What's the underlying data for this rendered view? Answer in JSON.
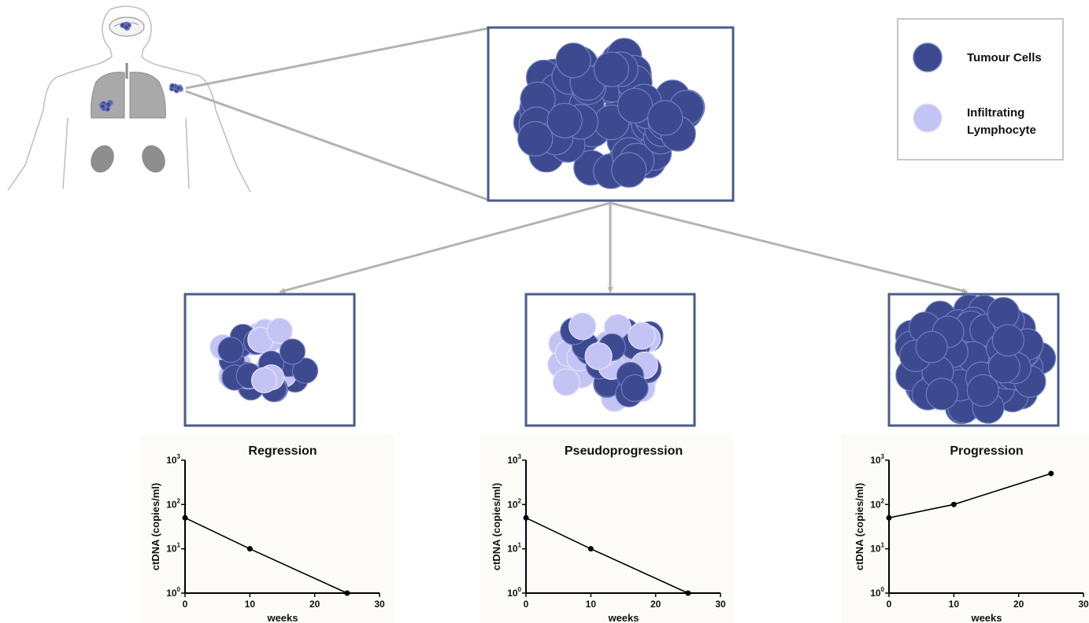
{
  "colors": {
    "tumour": "#3d4a8f",
    "tumour_stroke": "#6f7cc0",
    "lymphocyte": "#c4c4f4",
    "lymphocyte_stroke": "#e2e2fb",
    "frame": "#4a5b8c",
    "arrow": "#b3b3b3",
    "body_outline": "#bdbdbd",
    "organ": "#9a9a9a",
    "chart_bg": "#fcfbf8"
  },
  "legend": {
    "tumour_label": "Tumour Cells",
    "lymphocyte_label_line1": "Infiltrating",
    "lymphocyte_label_line2": "Lymphocyte"
  },
  "chart_data": [
    {
      "type": "line",
      "title": "Regression",
      "xlabel": "weeks",
      "ylabel": "ctDNA (copies/ml)",
      "x": [
        0,
        10,
        25
      ],
      "y": [
        50,
        10,
        1
      ],
      "xlim": [
        0,
        30
      ],
      "ylim": [
        1,
        1000
      ],
      "yscale": "log",
      "x_ticks": [
        "0",
        "10",
        "20",
        "30"
      ],
      "y_tick_exponents": [
        "0",
        "1",
        "2",
        "3"
      ],
      "y_tick_base": "10",
      "grid": false
    },
    {
      "type": "line",
      "title": "Pseudoprogression",
      "xlabel": "weeks",
      "ylabel": "ctDNA (copies/ml)",
      "x": [
        0,
        10,
        25
      ],
      "y": [
        50,
        10,
        1
      ],
      "xlim": [
        0,
        30
      ],
      "ylim": [
        1,
        1000
      ],
      "yscale": "log",
      "x_ticks": [
        "0",
        "10",
        "20",
        "30"
      ],
      "y_tick_exponents": [
        "0",
        "1",
        "2",
        "3"
      ],
      "y_tick_base": "10",
      "grid": false
    },
    {
      "type": "line",
      "title": "Progression",
      "xlabel": "weeks",
      "ylabel": "ctDNA (copies/ml)",
      "x": [
        0,
        10,
        25
      ],
      "y": [
        50,
        100,
        500
      ],
      "xlim": [
        0,
        30
      ],
      "ylim": [
        1,
        1000
      ],
      "yscale": "log",
      "x_ticks": [
        "0",
        "10",
        "20",
        "30"
      ],
      "y_tick_exponents": [
        "0",
        "1",
        "2",
        "3"
      ],
      "y_tick_base": "10",
      "grid": false
    }
  ]
}
